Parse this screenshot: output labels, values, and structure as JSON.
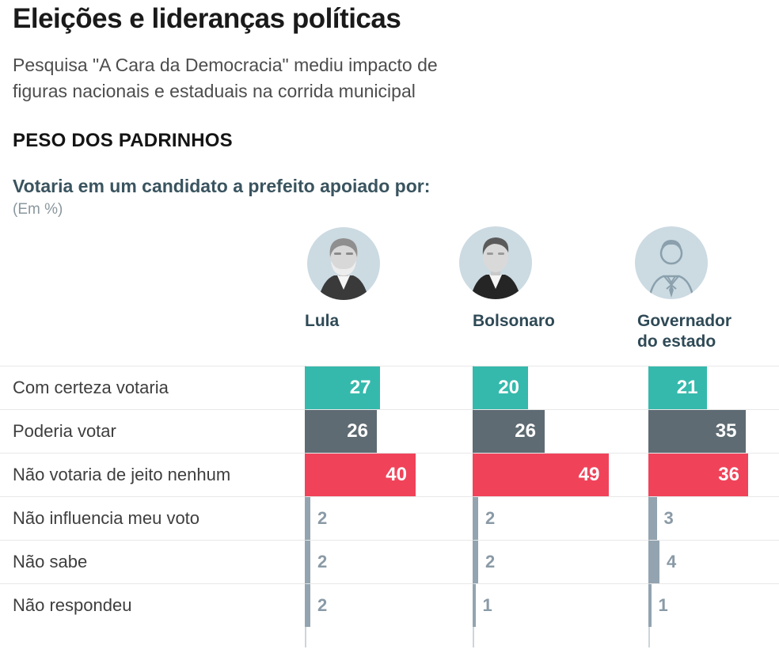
{
  "header": {
    "title": "Eleições e lideranças políticas",
    "subtitle_line1": "Pesquisa \"A Cara da Democracia\" mediu impacto de",
    "subtitle_line2": "figuras nacionais e estaduais na corrida municipal",
    "section_title": "PESO DOS PADRINHOS",
    "question": "Votaria em um candidato a prefeito apoiado por:",
    "unit_note": "(Em %)"
  },
  "columns": [
    {
      "name": "Lula",
      "avatar_icon": "lula-portrait"
    },
    {
      "name": "Bolsonaro",
      "avatar_icon": "bolsonaro-portrait"
    },
    {
      "name": "Governador do estado",
      "avatar_icon": "generic-person-icon"
    }
  ],
  "rows": [
    {
      "label": "Com certeza votaria",
      "color": "#35b9ac",
      "values": [
        27,
        20,
        21
      ]
    },
    {
      "label": "Poderia votar",
      "color": "#5f6b73",
      "values": [
        26,
        26,
        35
      ]
    },
    {
      "label": "Não votaria de jeito nenhum",
      "color": "#f0435a",
      "values": [
        40,
        49,
        36
      ]
    },
    {
      "label": "Não influencia meu voto",
      "color": "#93a4b0",
      "values": [
        2,
        2,
        3
      ]
    },
    {
      "label": "Não sabe",
      "color": "#93a4b0",
      "values": [
        2,
        2,
        4
      ]
    },
    {
      "label": "Não respondeu",
      "color": "#93a4b0",
      "values": [
        2,
        1,
        1
      ]
    }
  ],
  "chart_data": {
    "type": "bar",
    "orientation": "horizontal",
    "title": "PESO DOS PADRINHOS",
    "subtitle": "Votaria em um candidato a prefeito apoiado por:",
    "unit": "%",
    "categories": [
      "Com certeza votaria",
      "Poderia votar",
      "Não votaria de jeito nenhum",
      "Não influencia meu voto",
      "Não sabe",
      "Não respondeu"
    ],
    "series": [
      {
        "name": "Lula",
        "values": [
          27,
          26,
          40,
          2,
          2,
          2
        ]
      },
      {
        "name": "Bolsonaro",
        "values": [
          20,
          26,
          49,
          2,
          2,
          1
        ]
      },
      {
        "name": "Governador do estado",
        "values": [
          21,
          35,
          36,
          3,
          4,
          1
        ]
      }
    ],
    "value_range": [
      0,
      60
    ],
    "category_colors": [
      "#35b9ac",
      "#5f6b73",
      "#f0435a",
      "#93a4b0",
      "#93a4b0",
      "#93a4b0"
    ],
    "grid": "row-dividers",
    "legend_position": "none"
  },
  "colors": {
    "accent_teal": "#35b9ac",
    "accent_gray": "#5f6b73",
    "accent_red": "#f0435a",
    "accent_small_bar": "#93a4b0",
    "avatar_background": "#ccdae2",
    "heading_slate": "#3a545f"
  }
}
